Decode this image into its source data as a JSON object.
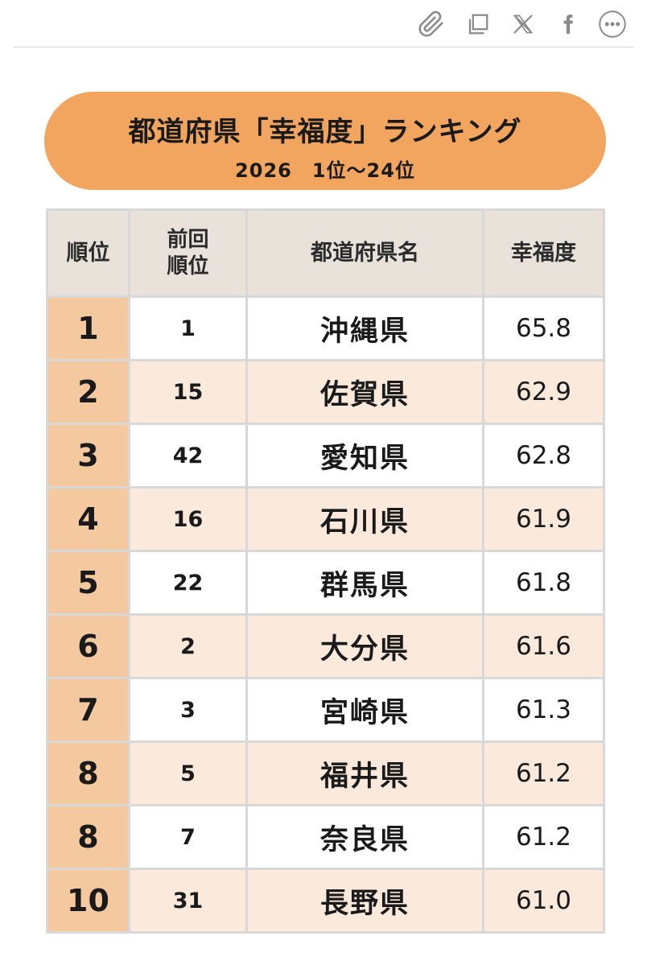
{
  "toolbar": {
    "icons": [
      "paperclip-icon",
      "copy-icon",
      "x-logo-icon",
      "facebook-icon",
      "more-icon"
    ]
  },
  "banner": {
    "title": "都道府県「幸福度」ランキング",
    "subtitle": "2026　1位～24位",
    "color": "#f2a55f"
  },
  "table": {
    "headers": {
      "rank": "順位",
      "prev_rank_line1": "前回",
      "prev_rank_line2": "順位",
      "name": "都道府県名",
      "score": "幸福度"
    },
    "rows": [
      {
        "rank": "1",
        "prev": "1",
        "name": "沖縄県",
        "score": "65.8"
      },
      {
        "rank": "2",
        "prev": "15",
        "name": "佐賀県",
        "score": "62.9"
      },
      {
        "rank": "3",
        "prev": "42",
        "name": "愛知県",
        "score": "62.8"
      },
      {
        "rank": "4",
        "prev": "16",
        "name": "石川県",
        "score": "61.9"
      },
      {
        "rank": "5",
        "prev": "22",
        "name": "群馬県",
        "score": "61.8"
      },
      {
        "rank": "6",
        "prev": "2",
        "name": "大分県",
        "score": "61.6"
      },
      {
        "rank": "7",
        "prev": "3",
        "name": "宮崎県",
        "score": "61.3"
      },
      {
        "rank": "8",
        "prev": "5",
        "name": "福井県",
        "score": "61.2"
      },
      {
        "rank": "8",
        "prev": "7",
        "name": "奈良県",
        "score": "61.2"
      },
      {
        "rank": "10",
        "prev": "31",
        "name": "長野県",
        "score": "61.0"
      }
    ],
    "colors": {
      "header_bg": "#e8e2db",
      "rank_bg": "#f5c9a0",
      "row_even_bg": "#fbeadc",
      "row_odd_bg": "#ffffff"
    }
  }
}
